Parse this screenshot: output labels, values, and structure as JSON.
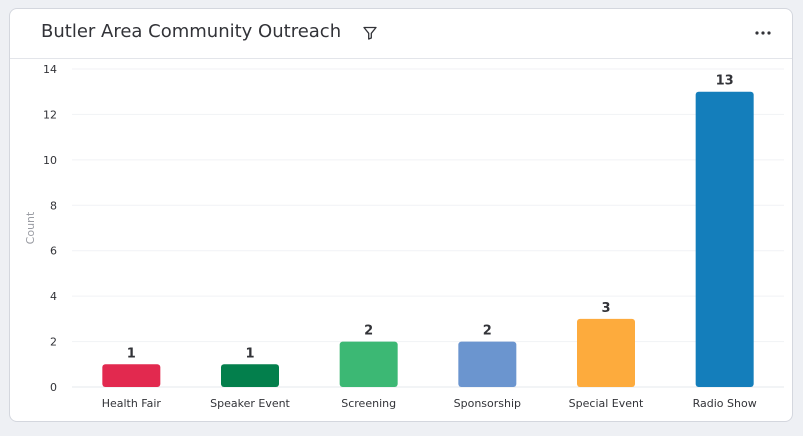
{
  "widget": {
    "title": "Butler Area Community Outreach",
    "filter_icon": "filter-icon",
    "menu_icon": "more-horizontal-icon"
  },
  "chart_data": {
    "type": "bar",
    "title": "Butler Area Community Outreach",
    "xlabel": "",
    "ylabel": "Count",
    "ylim": [
      0,
      14
    ],
    "yticks": [
      0,
      2,
      4,
      6,
      8,
      10,
      12,
      14
    ],
    "grid": true,
    "categories": [
      "Health Fair",
      "Speaker Event",
      "Screening",
      "Sponsorship",
      "Special Event",
      "Radio Show"
    ],
    "values": [
      1,
      1,
      2,
      2,
      3,
      13
    ],
    "colors": [
      "#e2294f",
      "#037f4c",
      "#3cb874",
      "#6b95cf",
      "#fdab3d",
      "#147ebb"
    ]
  }
}
